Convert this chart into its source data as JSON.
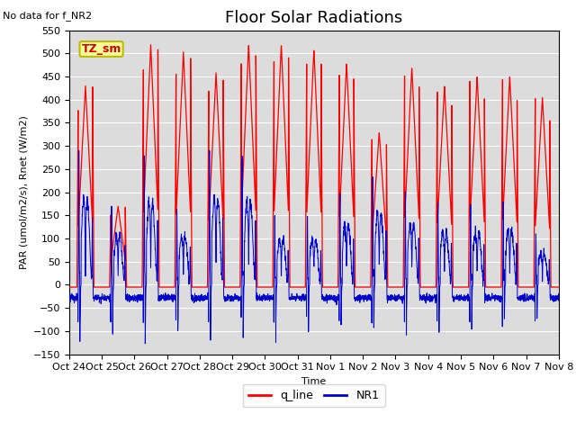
{
  "title": "Floor Solar Radiations",
  "ylabel": "PAR (umol/m2/s), Rnet (W/m2)",
  "xlabel": "Time",
  "no_data_label": "No data for f_NR2",
  "legend_label": "TZ_sm",
  "ylim": [
    -150,
    550
  ],
  "yticks": [
    -150,
    -100,
    -50,
    0,
    50,
    100,
    150,
    200,
    250,
    300,
    350,
    400,
    450,
    500,
    550
  ],
  "xtick_labels": [
    "Oct 24",
    "Oct 25",
    "Oct 26",
    "Oct 27",
    "Oct 28",
    "Oct 29",
    "Oct 30",
    "Oct 31",
    "Nov 1",
    "Nov 2",
    "Nov 3",
    "Nov 4",
    "Nov 5",
    "Nov 6",
    "Nov 7",
    "Nov 8"
  ],
  "q_line_color": "#FF0000",
  "NR1_color": "#0000CC",
  "background_color": "#DCDCDC",
  "title_fontsize": 13,
  "axis_label_fontsize": 8,
  "tick_label_fontsize": 8,
  "day_peaks_q": [
    430,
    170,
    520,
    505,
    460,
    520,
    520,
    510,
    480,
    330,
    470,
    430,
    450,
    450,
    405
  ],
  "day_peaks_nr1": [
    290,
    170,
    280,
    165,
    295,
    285,
    155,
    155,
    205,
    240,
    205,
    180,
    175,
    180,
    110
  ],
  "night_val_q": -5
}
